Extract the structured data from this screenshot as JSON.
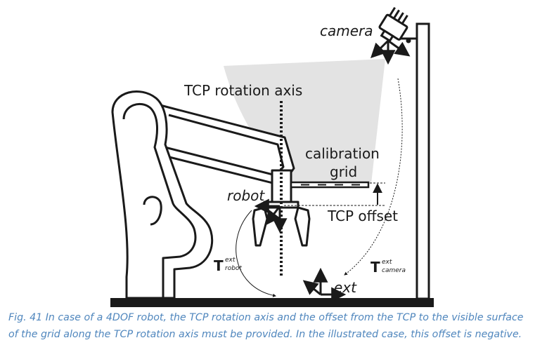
{
  "labels": {
    "camera": "camera",
    "tcp_rotation_axis": "TCP rotation axis",
    "calibration_grid_line1": "calibration",
    "calibration_grid_line2": "grid",
    "robot": "robot",
    "tcp_offset": "TCP offset",
    "ext": "ext",
    "t_robot_main": "T",
    "t_robot_sup": "ext",
    "t_robot_sub": "robot",
    "t_camera_main": "T",
    "t_camera_sup": "ext",
    "t_camera_sub": "camera"
  },
  "caption": {
    "line1": "Fig. 41 In case of a 4DOF robot, the TCP rotation axis and the offset from the TCP to the visible surface",
    "line2": "of the grid along the TCP rotation axis must be provided. In the illustrated case, this offset is negative."
  },
  "colors": {
    "line": "#1a1a1a",
    "robot_fill": "#ffffff",
    "camera_cone": "#e3e3e3",
    "caption_text": "#4f86bd"
  }
}
